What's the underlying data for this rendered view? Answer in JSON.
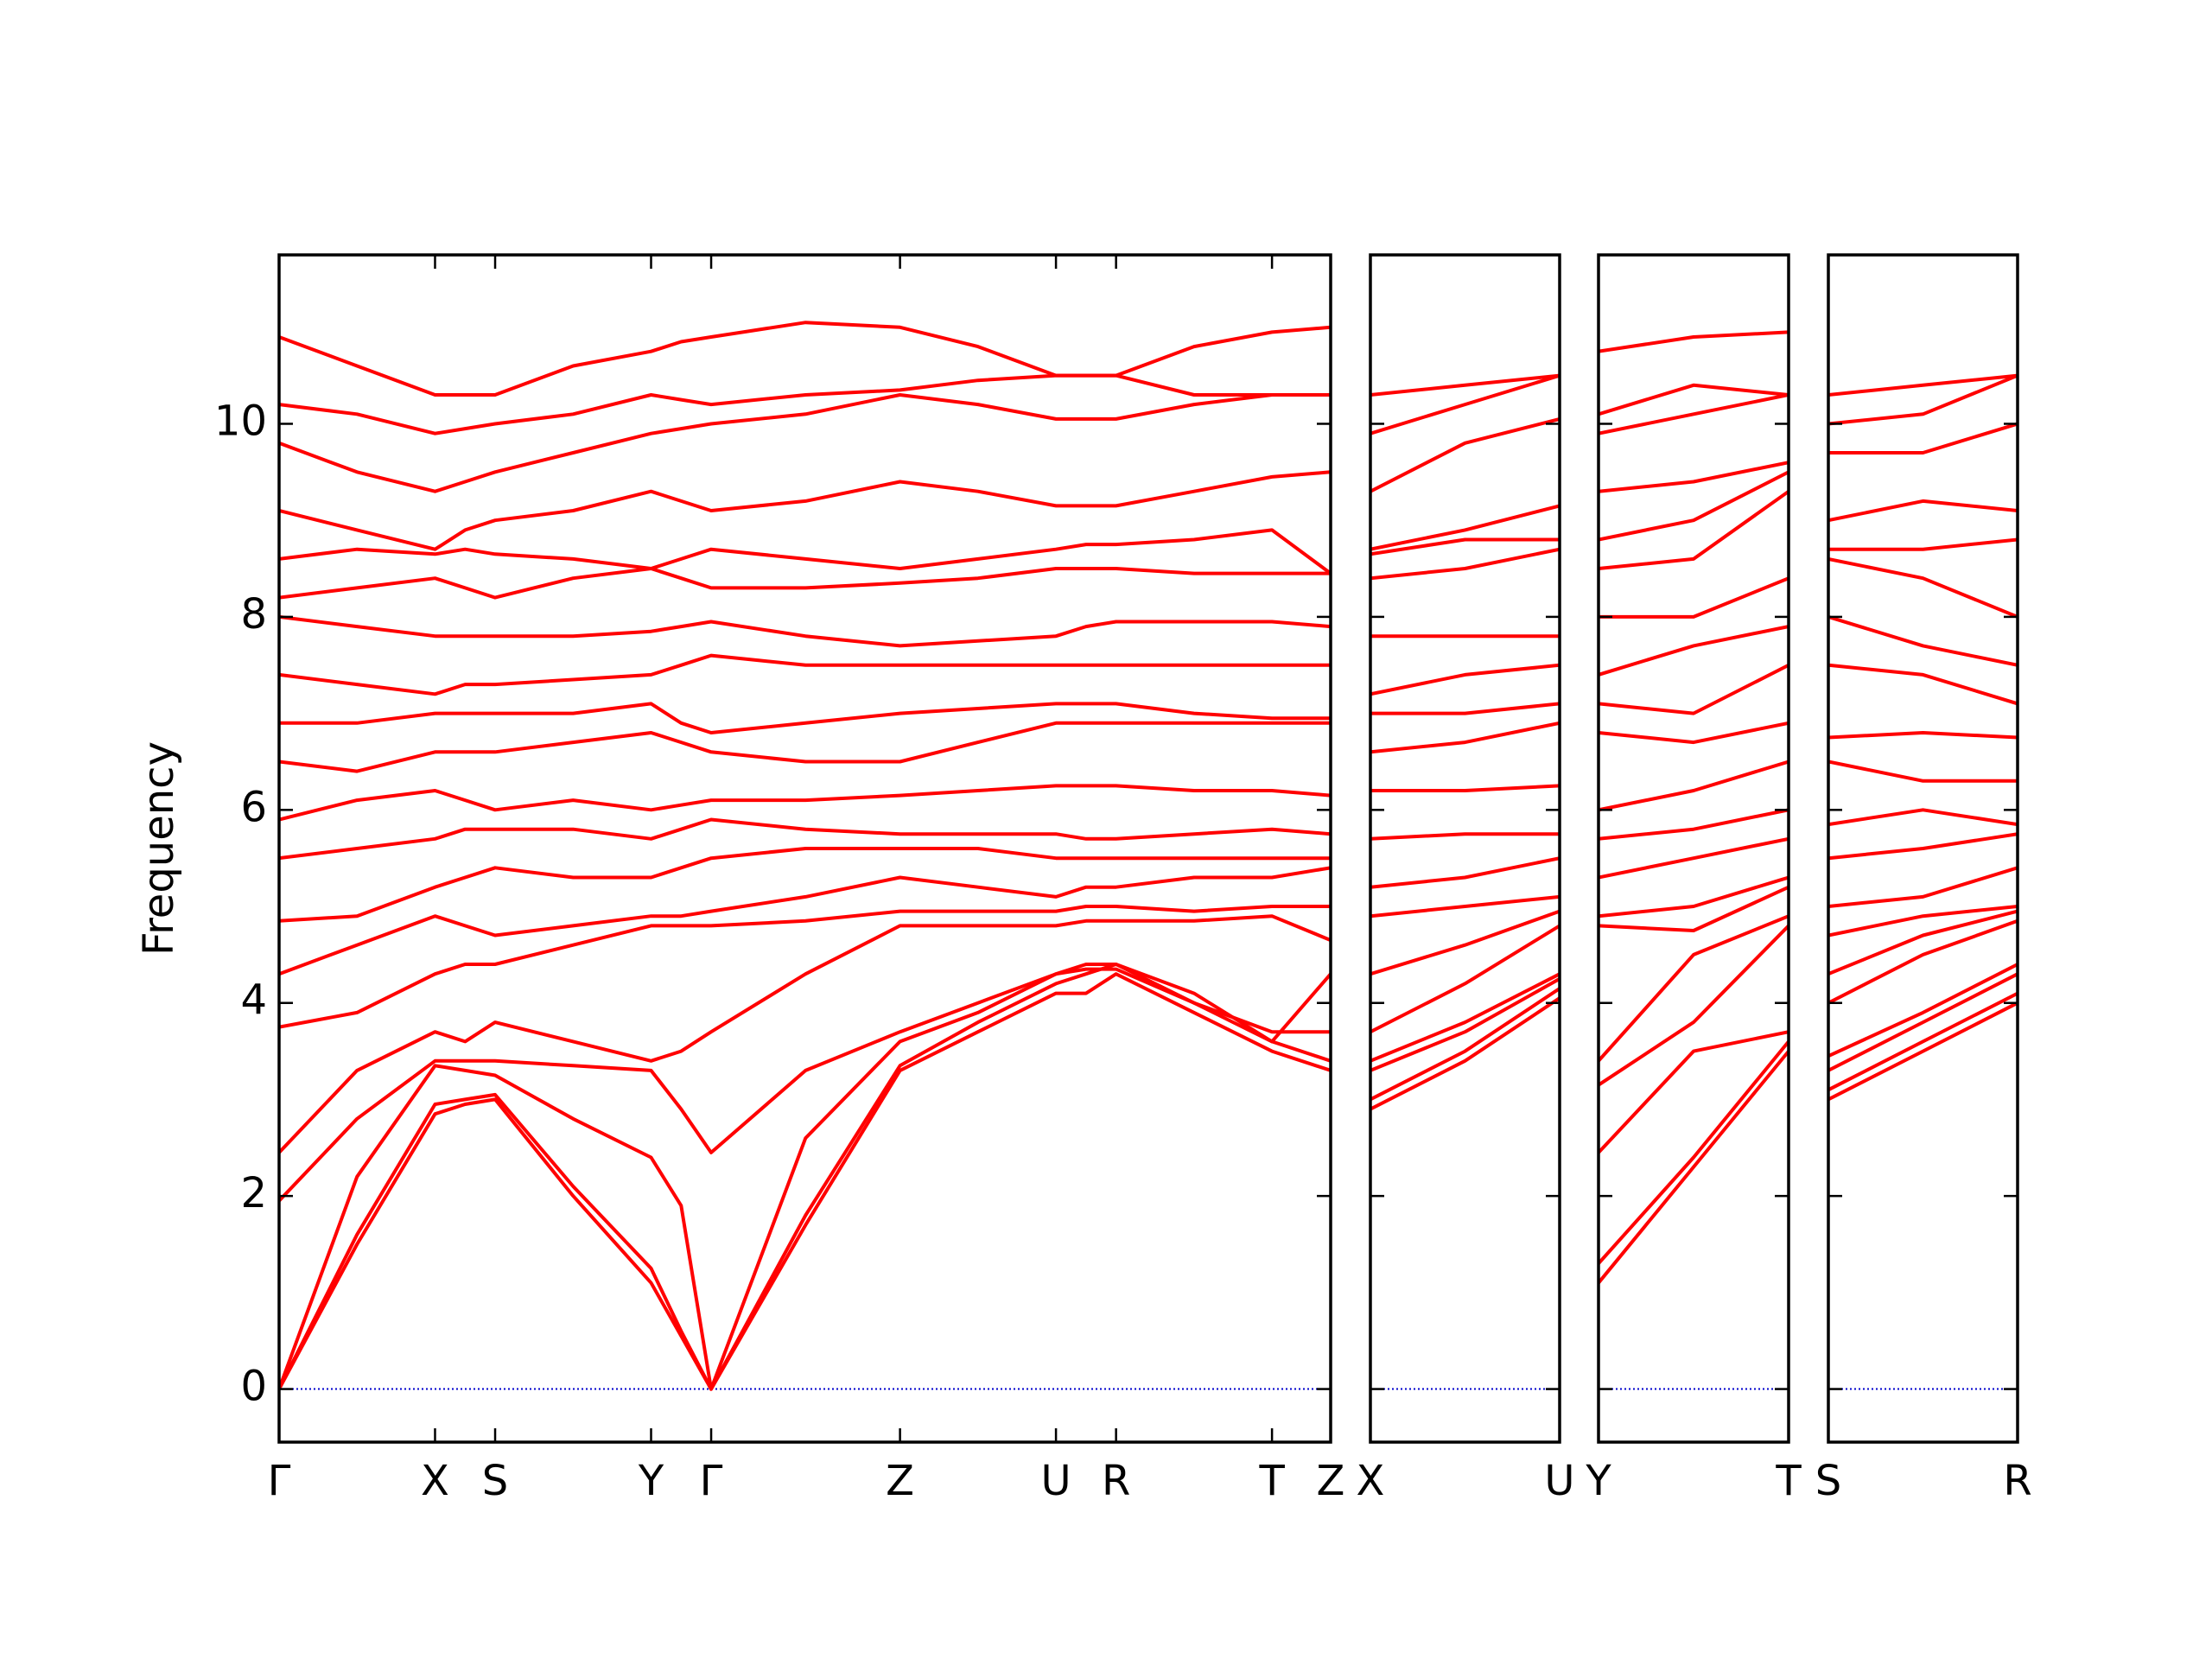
{
  "chart_data": [
    {
      "type": "line",
      "ylabel": "Frequency",
      "xlim": [
        0,
        7.35
      ],
      "ylim": [
        -0.55,
        11.75
      ],
      "yticks": [
        0,
        2,
        4,
        6,
        8,
        10
      ],
      "hline": 0,
      "hline_color": "#0000cc",
      "xticks": [
        {
          "value": 0,
          "label": "Γ"
        },
        {
          "value": 1.09,
          "label": "X"
        },
        {
          "value": 1.51,
          "label": "S"
        },
        {
          "value": 2.6,
          "label": "Y"
        },
        {
          "value": 3.02,
          "label": "Γ"
        },
        {
          "value": 4.34,
          "label": "Z"
        },
        {
          "value": 5.43,
          "label": "U"
        },
        {
          "value": 5.85,
          "label": "R"
        },
        {
          "value": 6.94,
          "label": "T"
        },
        {
          "value": 7.35,
          "label": "Z"
        }
      ],
      "x": [
        0,
        0.545,
        1.09,
        1.3,
        1.51,
        2.055,
        2.6,
        2.81,
        3.02,
        3.68,
        4.34,
        4.885,
        5.43,
        5.64,
        5.85,
        6.395,
        6.94,
        7.35
      ],
      "series": [
        {
          "color": "#ff0000",
          "values": [
            0,
            1.5,
            2.85,
            2.95,
            3.0,
            2.0,
            1.1,
            0.55,
            0,
            1.7,
            3.3,
            3.7,
            4.1,
            4.1,
            4.3,
            3.9,
            3.5,
            3.3
          ]
        },
        {
          "color": "#ff0000",
          "values": [
            0,
            1.6,
            2.95,
            3.0,
            3.05,
            2.1,
            1.25,
            0.6,
            0,
            1.8,
            3.35,
            3.8,
            4.2,
            4.3,
            4.4,
            4.0,
            3.6,
            3.4
          ]
        },
        {
          "color": "#ff0000",
          "values": [
            0,
            2.2,
            3.35,
            3.3,
            3.25,
            2.8,
            2.4,
            1.9,
            0,
            2.6,
            3.6,
            3.9,
            4.3,
            4.35,
            4.35,
            4.0,
            3.7,
            3.7
          ]
        },
        {
          "color": "#ff0000",
          "values": [
            1.95,
            2.8,
            3.4,
            3.4,
            3.4,
            3.35,
            3.3,
            2.9,
            2.45,
            3.3,
            3.7,
            4.0,
            4.3,
            4.4,
            4.4,
            4.1,
            3.6,
            4.3
          ]
        },
        {
          "color": "#ff0000",
          "values": [
            2.45,
            3.3,
            3.7,
            3.6,
            3.8,
            3.6,
            3.4,
            3.5,
            3.7,
            4.3,
            4.8,
            4.8,
            4.8,
            4.85,
            4.85,
            4.85,
            4.9,
            4.65
          ]
        },
        {
          "color": "#ff0000",
          "values": [
            3.75,
            3.9,
            4.3,
            4.4,
            4.4,
            4.6,
            4.8,
            4.8,
            4.8,
            4.85,
            4.95,
            4.95,
            4.95,
            5.0,
            5.0,
            4.95,
            5.0,
            5.0
          ]
        },
        {
          "color": "#ff0000",
          "values": [
            4.3,
            4.6,
            4.9,
            4.8,
            4.7,
            4.8,
            4.9,
            4.9,
            4.95,
            5.1,
            5.3,
            5.2,
            5.1,
            5.2,
            5.2,
            5.3,
            5.3,
            5.4
          ]
        },
        {
          "color": "#ff0000",
          "values": [
            4.85,
            4.9,
            5.2,
            5.3,
            5.4,
            5.3,
            5.3,
            5.4,
            5.5,
            5.6,
            5.6,
            5.6,
            5.5,
            5.5,
            5.5,
            5.5,
            5.5,
            5.5
          ]
        },
        {
          "color": "#ff0000",
          "values": [
            5.5,
            5.6,
            5.7,
            5.8,
            5.8,
            5.8,
            5.7,
            5.8,
            5.9,
            5.8,
            5.75,
            5.75,
            5.75,
            5.7,
            5.7,
            5.75,
            5.8,
            5.75
          ]
        },
        {
          "color": "#ff0000",
          "values": [
            5.9,
            6.1,
            6.2,
            6.1,
            6.0,
            6.1,
            6.0,
            6.05,
            6.1,
            6.1,
            6.15,
            6.2,
            6.25,
            6.25,
            6.25,
            6.2,
            6.2,
            6.15
          ]
        },
        {
          "color": "#ff0000",
          "values": [
            6.5,
            6.4,
            6.6,
            6.6,
            6.6,
            6.7,
            6.8,
            6.7,
            6.6,
            6.5,
            6.5,
            6.7,
            6.9,
            6.9,
            6.9,
            6.9,
            6.9,
            6.9
          ]
        },
        {
          "color": "#ff0000",
          "values": [
            6.9,
            6.9,
            7.0,
            7.0,
            7.0,
            7.0,
            7.1,
            6.9,
            6.8,
            6.9,
            7.0,
            7.05,
            7.1,
            7.1,
            7.1,
            7.0,
            6.95,
            6.95
          ]
        },
        {
          "color": "#ff0000",
          "values": [
            7.4,
            7.3,
            7.2,
            7.3,
            7.3,
            7.35,
            7.4,
            7.5,
            7.6,
            7.5,
            7.5,
            7.5,
            7.5,
            7.5,
            7.5,
            7.5,
            7.5,
            7.5
          ]
        },
        {
          "color": "#ff0000",
          "values": [
            8.0,
            7.9,
            7.8,
            7.8,
            7.8,
            7.8,
            7.85,
            7.9,
            7.95,
            7.8,
            7.7,
            7.75,
            7.8,
            7.9,
            7.95,
            7.95,
            7.95,
            7.9
          ]
        },
        {
          "color": "#ff0000",
          "values": [
            8.2,
            8.3,
            8.4,
            8.3,
            8.2,
            8.4,
            8.5,
            8.4,
            8.3,
            8.3,
            8.35,
            8.4,
            8.5,
            8.5,
            8.5,
            8.45,
            8.45,
            8.45
          ]
        },
        {
          "color": "#ff0000",
          "values": [
            8.6,
            8.7,
            8.65,
            8.7,
            8.65,
            8.6,
            8.5,
            8.6,
            8.7,
            8.6,
            8.5,
            8.6,
            8.7,
            8.75,
            8.75,
            8.8,
            8.9,
            8.45
          ]
        },
        {
          "color": "#ff0000",
          "values": [
            9.1,
            8.9,
            8.7,
            8.9,
            9.0,
            9.1,
            9.3,
            9.2,
            9.1,
            9.2,
            9.4,
            9.3,
            9.15,
            9.15,
            9.15,
            9.3,
            9.45,
            9.5
          ]
        },
        {
          "color": "#ff0000",
          "values": [
            9.8,
            9.5,
            9.3,
            9.4,
            9.5,
            9.7,
            9.9,
            9.95,
            10.0,
            10.1,
            10.3,
            10.2,
            10.05,
            10.05,
            10.05,
            10.2,
            10.3,
            10.3
          ]
        },
        {
          "color": "#ff0000",
          "values": [
            10.2,
            10.1,
            9.9,
            9.95,
            10.0,
            10.1,
            10.3,
            10.25,
            10.2,
            10.3,
            10.35,
            10.45,
            10.5,
            10.5,
            10.5,
            10.3,
            10.3,
            10.3
          ]
        },
        {
          "color": "#ff0000",
          "values": [
            10.9,
            10.6,
            10.3,
            10.3,
            10.3,
            10.6,
            10.75,
            10.85,
            10.9,
            11.05,
            11.0,
            10.8,
            10.5,
            10.5,
            10.5,
            10.8,
            10.95,
            11.0
          ]
        }
      ]
    },
    {
      "type": "line",
      "xlim": [
        0,
        1.32
      ],
      "ylim": [
        -0.55,
        11.75
      ],
      "hline": 0,
      "hline_color": "#0000cc",
      "xticks": [
        {
          "value": 0,
          "label": "X"
        },
        {
          "value": 1.32,
          "label": "U"
        }
      ],
      "x": [
        0,
        0.66,
        1.32
      ],
      "series": [
        {
          "color": "#ff0000",
          "values": [
            2.9,
            3.4,
            4.05
          ]
        },
        {
          "color": "#ff0000",
          "values": [
            3.0,
            3.5,
            4.15
          ]
        },
        {
          "color": "#ff0000",
          "values": [
            3.3,
            3.7,
            4.25
          ]
        },
        {
          "color": "#ff0000",
          "values": [
            3.4,
            3.8,
            4.3
          ]
        },
        {
          "color": "#ff0000",
          "values": [
            3.7,
            4.2,
            4.8
          ]
        },
        {
          "color": "#ff0000",
          "values": [
            4.3,
            4.6,
            4.95
          ]
        },
        {
          "color": "#ff0000",
          "values": [
            4.9,
            5.0,
            5.1
          ]
        },
        {
          "color": "#ff0000",
          "values": [
            5.2,
            5.3,
            5.5
          ]
        },
        {
          "color": "#ff0000",
          "values": [
            5.7,
            5.75,
            5.75
          ]
        },
        {
          "color": "#ff0000",
          "values": [
            6.2,
            6.2,
            6.25
          ]
        },
        {
          "color": "#ff0000",
          "values": [
            6.6,
            6.7,
            6.9
          ]
        },
        {
          "color": "#ff0000",
          "values": [
            7.0,
            7.0,
            7.1
          ]
        },
        {
          "color": "#ff0000",
          "values": [
            7.2,
            7.4,
            7.5
          ]
        },
        {
          "color": "#ff0000",
          "values": [
            7.8,
            7.8,
            7.8
          ]
        },
        {
          "color": "#ff0000",
          "values": [
            8.4,
            8.5,
            8.7
          ]
        },
        {
          "color": "#ff0000",
          "values": [
            8.65,
            8.8,
            8.8
          ]
        },
        {
          "color": "#ff0000",
          "values": [
            8.7,
            8.9,
            9.15
          ]
        },
        {
          "color": "#ff0000",
          "values": [
            9.3,
            9.8,
            10.05
          ]
        },
        {
          "color": "#ff0000",
          "values": [
            9.9,
            10.2,
            10.5
          ]
        },
        {
          "color": "#ff0000",
          "values": [
            10.3,
            10.4,
            10.5
          ]
        }
      ]
    },
    {
      "type": "line",
      "xlim": [
        0,
        1.33
      ],
      "ylim": [
        -0.55,
        11.75
      ],
      "hline": 0,
      "hline_color": "#0000cc",
      "xticks": [
        {
          "value": 0,
          "label": "Y"
        },
        {
          "value": 1.33,
          "label": "T"
        }
      ],
      "x": [
        0,
        0.665,
        1.33
      ],
      "series": [
        {
          "color": "#ff0000",
          "values": [
            1.1,
            2.3,
            3.5
          ]
        },
        {
          "color": "#ff0000",
          "values": [
            1.3,
            2.4,
            3.6
          ]
        },
        {
          "color": "#ff0000",
          "values": [
            2.45,
            3.5,
            3.7
          ]
        },
        {
          "color": "#ff0000",
          "values": [
            3.15,
            3.8,
            4.8
          ]
        },
        {
          "color": "#ff0000",
          "values": [
            3.4,
            4.5,
            4.9
          ]
        },
        {
          "color": "#ff0000",
          "values": [
            4.8,
            4.75,
            5.2
          ]
        },
        {
          "color": "#ff0000",
          "values": [
            4.9,
            5.0,
            5.3
          ]
        },
        {
          "color": "#ff0000",
          "values": [
            5.3,
            5.5,
            5.7
          ]
        },
        {
          "color": "#ff0000",
          "values": [
            5.7,
            5.8,
            6.0
          ]
        },
        {
          "color": "#ff0000",
          "values": [
            6.0,
            6.2,
            6.5
          ]
        },
        {
          "color": "#ff0000",
          "values": [
            6.8,
            6.7,
            6.9
          ]
        },
        {
          "color": "#ff0000",
          "values": [
            7.1,
            7.0,
            7.5
          ]
        },
        {
          "color": "#ff0000",
          "values": [
            7.4,
            7.7,
            7.9
          ]
        },
        {
          "color": "#ff0000",
          "values": [
            8.0,
            8.0,
            8.4
          ]
        },
        {
          "color": "#ff0000",
          "values": [
            8.5,
            8.6,
            9.3
          ]
        },
        {
          "color": "#ff0000",
          "values": [
            8.8,
            9.0,
            9.5
          ]
        },
        {
          "color": "#ff0000",
          "values": [
            9.3,
            9.4,
            9.6
          ]
        },
        {
          "color": "#ff0000",
          "values": [
            9.9,
            10.1,
            10.3
          ]
        },
        {
          "color": "#ff0000",
          "values": [
            10.1,
            10.4,
            10.3
          ]
        },
        {
          "color": "#ff0000",
          "values": [
            10.75,
            10.9,
            10.95
          ]
        }
      ]
    },
    {
      "type": "line",
      "xlim": [
        0,
        1.32
      ],
      "ylim": [
        -0.55,
        11.75
      ],
      "hline": 0,
      "hline_color": "#0000cc",
      "xticks": [
        {
          "value": 0,
          "label": "S"
        },
        {
          "value": 1.32,
          "label": "R"
        }
      ],
      "x": [
        0,
        0.66,
        1.32
      ],
      "series": [
        {
          "color": "#ff0000",
          "values": [
            3.0,
            3.5,
            4.0
          ]
        },
        {
          "color": "#ff0000",
          "values": [
            3.1,
            3.6,
            4.1
          ]
        },
        {
          "color": "#ff0000",
          "values": [
            3.3,
            3.8,
            4.3
          ]
        },
        {
          "color": "#ff0000",
          "values": [
            3.45,
            3.9,
            4.4
          ]
        },
        {
          "color": "#ff0000",
          "values": [
            4.0,
            4.5,
            4.85
          ]
        },
        {
          "color": "#ff0000",
          "values": [
            4.3,
            4.7,
            4.95
          ]
        },
        {
          "color": "#ff0000",
          "values": [
            4.7,
            4.9,
            5.0
          ]
        },
        {
          "color": "#ff0000",
          "values": [
            5.0,
            5.1,
            5.4
          ]
        },
        {
          "color": "#ff0000",
          "values": [
            5.5,
            5.6,
            5.75
          ]
        },
        {
          "color": "#ff0000",
          "values": [
            5.85,
            6.0,
            5.85
          ]
        },
        {
          "color": "#ff0000",
          "values": [
            6.5,
            6.3,
            6.3
          ]
        },
        {
          "color": "#ff0000",
          "values": [
            6.75,
            6.8,
            6.75
          ]
        },
        {
          "color": "#ff0000",
          "values": [
            7.5,
            7.4,
            7.1
          ]
        },
        {
          "color": "#ff0000",
          "values": [
            8.0,
            7.7,
            7.5
          ]
        },
        {
          "color": "#ff0000",
          "values": [
            8.6,
            8.4,
            8.0
          ]
        },
        {
          "color": "#ff0000",
          "values": [
            8.7,
            8.7,
            8.8
          ]
        },
        {
          "color": "#ff0000",
          "values": [
            9.0,
            9.2,
            9.1
          ]
        },
        {
          "color": "#ff0000",
          "values": [
            9.7,
            9.7,
            10.0
          ]
        },
        {
          "color": "#ff0000",
          "values": [
            10.0,
            10.1,
            10.5
          ]
        },
        {
          "color": "#ff0000",
          "values": [
            10.3,
            10.4,
            10.5
          ]
        }
      ]
    }
  ]
}
